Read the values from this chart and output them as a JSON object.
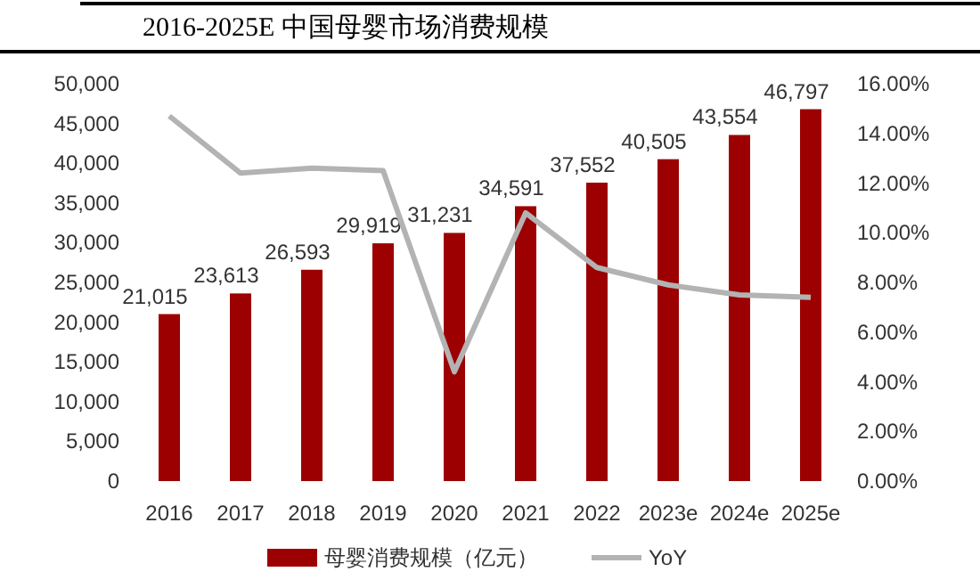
{
  "chart_data": {
    "type": "bar",
    "title": "2016-2025E 中国母婴市场消费规模",
    "categories": [
      "2016",
      "2017",
      "2018",
      "2019",
      "2020",
      "2021",
      "2022",
      "2023e",
      "2024e",
      "2025e"
    ],
    "series": [
      {
        "name": "母婴消费规模（亿元）",
        "color": "#9c0000",
        "values": [
          21015,
          23613,
          26593,
          29919,
          31231,
          34591,
          37552,
          40505,
          43554,
          46797
        ],
        "value_labels": [
          "21,015",
          "23,613",
          "26,593",
          "29,919",
          "31,231",
          "34,591",
          "37,552",
          "40,505",
          "43,554",
          "46,797"
        ]
      },
      {
        "name": "YoY",
        "type": "line",
        "axis": "y2",
        "color": "#b3b3b3",
        "values": [
          14.7,
          12.4,
          12.6,
          12.5,
          4.4,
          10.8,
          8.6,
          7.9,
          7.5,
          7.4
        ]
      }
    ],
    "ylim": [
      0,
      50000
    ],
    "yticks": [
      0,
      {
        "value": 5000,
        "label": "5,000"
      },
      {
        "value": 10000,
        "label": "10,000"
      },
      {
        "value": 15000,
        "label": "15,000"
      },
      {
        "value": 20000,
        "label": "20,000"
      },
      {
        "value": 25000,
        "label": "25,000"
      },
      {
        "value": 30000,
        "label": "30,000"
      },
      {
        "value": 35000,
        "label": "35,000"
      },
      {
        "value": 40000,
        "label": "40,000"
      },
      {
        "value": 45000,
        "label": "45,000"
      },
      {
        "value": 50000,
        "label": "50,000"
      }
    ],
    "y2lim": [
      0,
      16
    ],
    "y2ticks": [
      {
        "value": 0,
        "label": "0.00%"
      },
      {
        "value": 2,
        "label": "2.00%"
      },
      {
        "value": 4,
        "label": "4.00%"
      },
      {
        "value": 6,
        "label": "6.00%"
      },
      {
        "value": 8,
        "label": "8.00%"
      },
      {
        "value": 10,
        "label": "10.00%"
      },
      {
        "value": 12,
        "label": "12.00%"
      },
      {
        "value": 14,
        "label": "14.00%"
      },
      {
        "value": 16,
        "label": "16.00%"
      }
    ],
    "legend": "bottom",
    "grid": false
  }
}
